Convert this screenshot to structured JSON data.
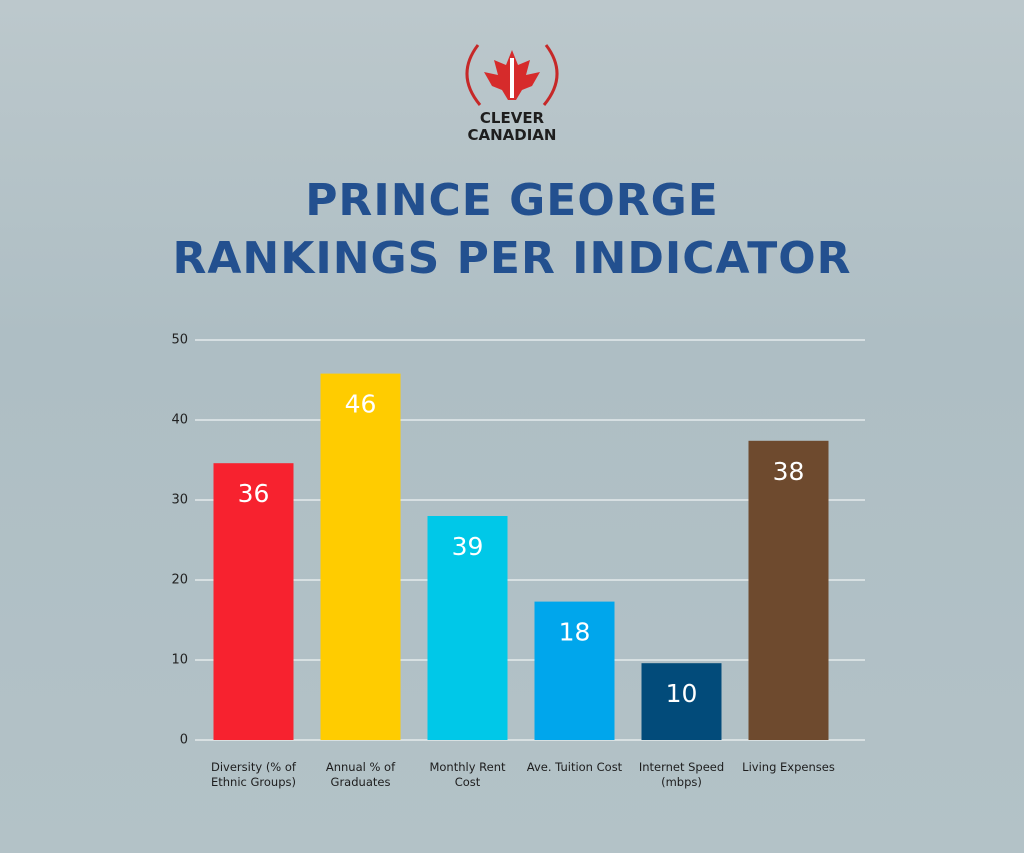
{
  "logo": {
    "text": "CLEVER\nCANADIAN"
  },
  "chart_data": {
    "type": "bar",
    "title": "PRINCE GEORGE\nRANKINGS PER INDICATOR",
    "categories": [
      "Diversity (% of Ethnic Groups)",
      "Annual % of Graduates",
      "Monthly Rent Cost",
      "Ave. Tuition Cost",
      "Internet Speed (mbps)",
      "Living Expenses"
    ],
    "values": [
      34.6,
      45.8,
      28,
      17.3,
      9.6,
      37.4
    ],
    "rankings": [
      36,
      46,
      39,
      18,
      10,
      38
    ],
    "colors": [
      "#f7222f",
      "#ffcc00",
      "#00c8e8",
      "#00a6ec",
      "#024b7a",
      "#6e4a2e"
    ],
    "ylim": [
      0,
      50
    ],
    "yticks": [
      0,
      10,
      20,
      30,
      40,
      50
    ],
    "grid": true
  }
}
